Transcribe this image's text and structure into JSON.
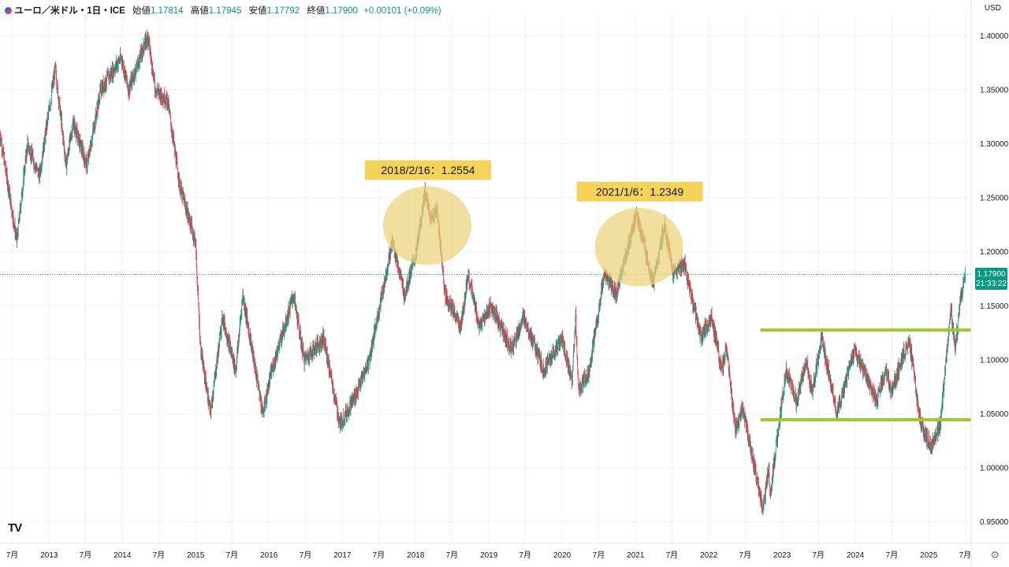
{
  "header": {
    "symbol": "ユーロ／米ドル・1日・ICE",
    "open_label": "始値",
    "open": "1.17814",
    "high_label": "高値",
    "high": "1.17945",
    "low_label": "安値",
    "low": "1.17792",
    "close_label": "終値",
    "close": "1.17900",
    "change": "+0.00101 (+0.09%)"
  },
  "currency": "USD",
  "price_badge": {
    "price": "1.17900",
    "time": "21:33:22"
  },
  "colors": {
    "up": "#089981",
    "down": "#f23645",
    "highlight_fill": "#ecd27c",
    "label_fill": "#f5d258",
    "support_line": "#9ccc2c"
  },
  "chart_data": {
    "type": "candlestick",
    "ylim": [
      0.93,
      1.42
    ],
    "y_ticks": [
      "0.95000",
      "1.00000",
      "1.05000",
      "1.10000",
      "1.15000",
      "1.20000",
      "1.25000",
      "1.30000",
      "1.35000",
      "1.40000"
    ],
    "x_range": [
      "2012-05-01",
      "2025-07-31"
    ],
    "x_ticks": [
      {
        "date": "2012-07-01",
        "label": "7月"
      },
      {
        "date": "2013-01-01",
        "label": "2013"
      },
      {
        "date": "2013-07-01",
        "label": "7月"
      },
      {
        "date": "2014-01-01",
        "label": "2014"
      },
      {
        "date": "2014-07-01",
        "label": "7月"
      },
      {
        "date": "2015-01-01",
        "label": "2015"
      },
      {
        "date": "2015-07-01",
        "label": "7月"
      },
      {
        "date": "2016-01-01",
        "label": "2016"
      },
      {
        "date": "2016-07-01",
        "label": "7月"
      },
      {
        "date": "2017-01-01",
        "label": "2017"
      },
      {
        "date": "2017-07-01",
        "label": "7月"
      },
      {
        "date": "2018-01-01",
        "label": "2018"
      },
      {
        "date": "2018-07-01",
        "label": "7月"
      },
      {
        "date": "2019-01-01",
        "label": "2019"
      },
      {
        "date": "2019-07-01",
        "label": "7月"
      },
      {
        "date": "2020-01-01",
        "label": "2020"
      },
      {
        "date": "2020-07-01",
        "label": "7月"
      },
      {
        "date": "2021-01-01",
        "label": "2021"
      },
      {
        "date": "2021-07-01",
        "label": "7月"
      },
      {
        "date": "2022-01-01",
        "label": "2022"
      },
      {
        "date": "2022-07-01",
        "label": "7月"
      },
      {
        "date": "2023-01-01",
        "label": "2023"
      },
      {
        "date": "2023-07-01",
        "label": "7月"
      },
      {
        "date": "2024-01-01",
        "label": "2024"
      },
      {
        "date": "2024-07-01",
        "label": "7月"
      },
      {
        "date": "2025-01-01",
        "label": "2025"
      },
      {
        "date": "2025-07-01",
        "label": "7月"
      }
    ],
    "price_path": [
      [
        "2012-05-01",
        1.31
      ],
      [
        "2012-07-24",
        1.21
      ],
      [
        "2012-09-15",
        1.3
      ],
      [
        "2012-11-13",
        1.27
      ],
      [
        "2013-02-01",
        1.37
      ],
      [
        "2013-03-27",
        1.28
      ],
      [
        "2013-05-01",
        1.32
      ],
      [
        "2013-07-09",
        1.28
      ],
      [
        "2013-09-15",
        1.35
      ],
      [
        "2013-12-27",
        1.38
      ],
      [
        "2014-02-01",
        1.35
      ],
      [
        "2014-05-08",
        1.4
      ],
      [
        "2014-06-15",
        1.35
      ],
      [
        "2014-08-15",
        1.34
      ],
      [
        "2014-10-15",
        1.26
      ],
      [
        "2014-12-31",
        1.21
      ],
      [
        "2015-01-26",
        1.11
      ],
      [
        "2015-03-16",
        1.05
      ],
      [
        "2015-05-15",
        1.14
      ],
      [
        "2015-07-20",
        1.09
      ],
      [
        "2015-08-24",
        1.16
      ],
      [
        "2015-12-03",
        1.05
      ],
      [
        "2016-01-15",
        1.09
      ],
      [
        "2016-05-03",
        1.16
      ],
      [
        "2016-06-25",
        1.1
      ],
      [
        "2016-09-30",
        1.12
      ],
      [
        "2016-12-20",
        1.04
      ],
      [
        "2017-03-15",
        1.07
      ],
      [
        "2017-05-15",
        1.1
      ],
      [
        "2017-09-08",
        1.21
      ],
      [
        "2017-11-07",
        1.16
      ],
      [
        "2018-01-05",
        1.2
      ],
      [
        "2018-02-16",
        1.2554
      ],
      [
        "2018-03-20",
        1.23
      ],
      [
        "2018-04-17",
        1.24
      ],
      [
        "2018-05-29",
        1.16
      ],
      [
        "2018-08-15",
        1.13
      ],
      [
        "2018-09-20",
        1.18
      ],
      [
        "2018-11-15",
        1.13
      ],
      [
        "2019-01-10",
        1.15
      ],
      [
        "2019-04-25",
        1.11
      ],
      [
        "2019-06-25",
        1.14
      ],
      [
        "2019-10-01",
        1.09
      ],
      [
        "2019-12-31",
        1.12
      ],
      [
        "2020-02-20",
        1.08
      ],
      [
        "2020-03-09",
        1.14
      ],
      [
        "2020-03-23",
        1.07
      ],
      [
        "2020-05-15",
        1.09
      ],
      [
        "2020-07-31",
        1.18
      ],
      [
        "2020-09-25",
        1.16
      ],
      [
        "2021-01-06",
        1.2349
      ],
      [
        "2021-03-31",
        1.17
      ],
      [
        "2021-05-25",
        1.225
      ],
      [
        "2021-07-07",
        1.18
      ],
      [
        "2021-09-01",
        1.19
      ],
      [
        "2021-11-24",
        1.12
      ],
      [
        "2022-01-15",
        1.14
      ],
      [
        "2022-03-07",
        1.09
      ],
      [
        "2022-03-31",
        1.11
      ],
      [
        "2022-05-13",
        1.035
      ],
      [
        "2022-06-20",
        1.055
      ],
      [
        "2022-09-28",
        0.96
      ],
      [
        "2022-10-27",
        1.0
      ],
      [
        "2022-11-03",
        0.975
      ],
      [
        "2023-01-20",
        1.09
      ],
      [
        "2023-03-15",
        1.06
      ],
      [
        "2023-05-01",
        1.1
      ],
      [
        "2023-05-31",
        1.07
      ],
      [
        "2023-07-18",
        1.12
      ],
      [
        "2023-10-03",
        1.05
      ],
      [
        "2023-12-28",
        1.11
      ],
      [
        "2024-04-16",
        1.063
      ],
      [
        "2024-06-04",
        1.09
      ],
      [
        "2024-06-26",
        1.07
      ],
      [
        "2024-09-25",
        1.12
      ],
      [
        "2024-11-22",
        1.04
      ],
      [
        "2025-01-13",
        1.02
      ],
      [
        "2025-02-28",
        1.04
      ],
      [
        "2025-04-21",
        1.15
      ],
      [
        "2025-05-12",
        1.11
      ],
      [
        "2025-06-12",
        1.16
      ],
      [
        "2025-07-01",
        1.179
      ]
    ],
    "last_price": 1.179,
    "highlights": [
      {
        "label": "2018/2/16：1.2554",
        "center": [
          "2018-02-16",
          1.225
        ]
      },
      {
        "label": "2021/1/6：1.2349",
        "center": [
          "2021-01-06",
          1.205
        ]
      }
    ],
    "horizontal_lines": [
      {
        "from": "2022-09-15",
        "to": "2025-07-31",
        "y": 1.1275
      },
      {
        "from": "2022-09-15",
        "to": "2025-07-31",
        "y": 1.0445
      }
    ]
  }
}
